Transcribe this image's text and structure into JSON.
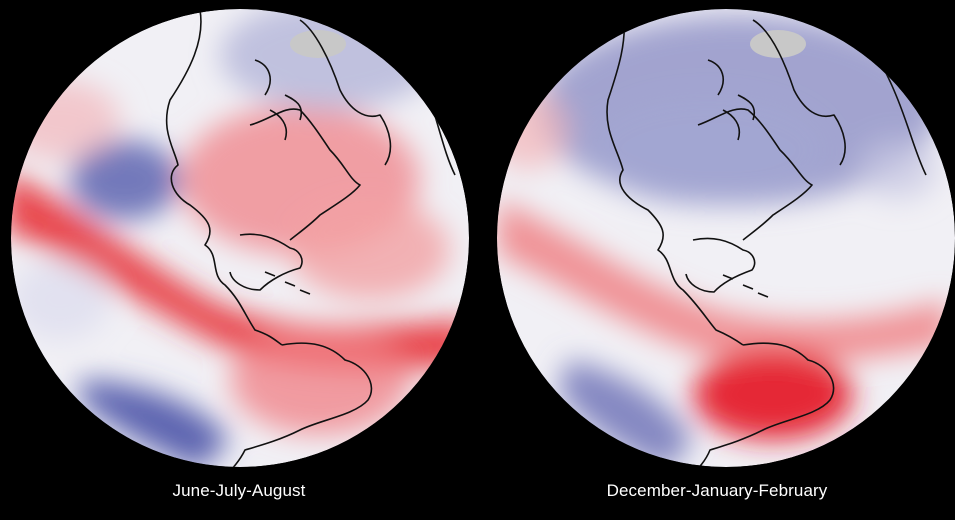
{
  "panels": [
    {
      "caption": "June-July-August",
      "palette": {
        "warm": "#e8323a",
        "cool": "#5e64b0",
        "neutral": "#f2f2f6",
        "land_outline": "#111111",
        "ice": "#c9c9c9"
      }
    },
    {
      "caption": "December-January-February",
      "palette": {
        "warm": "#e8323a",
        "cool": "#5e64b0",
        "neutral": "#f2f2f6",
        "land_outline": "#111111",
        "ice": "#c9c9c9"
      }
    }
  ]
}
